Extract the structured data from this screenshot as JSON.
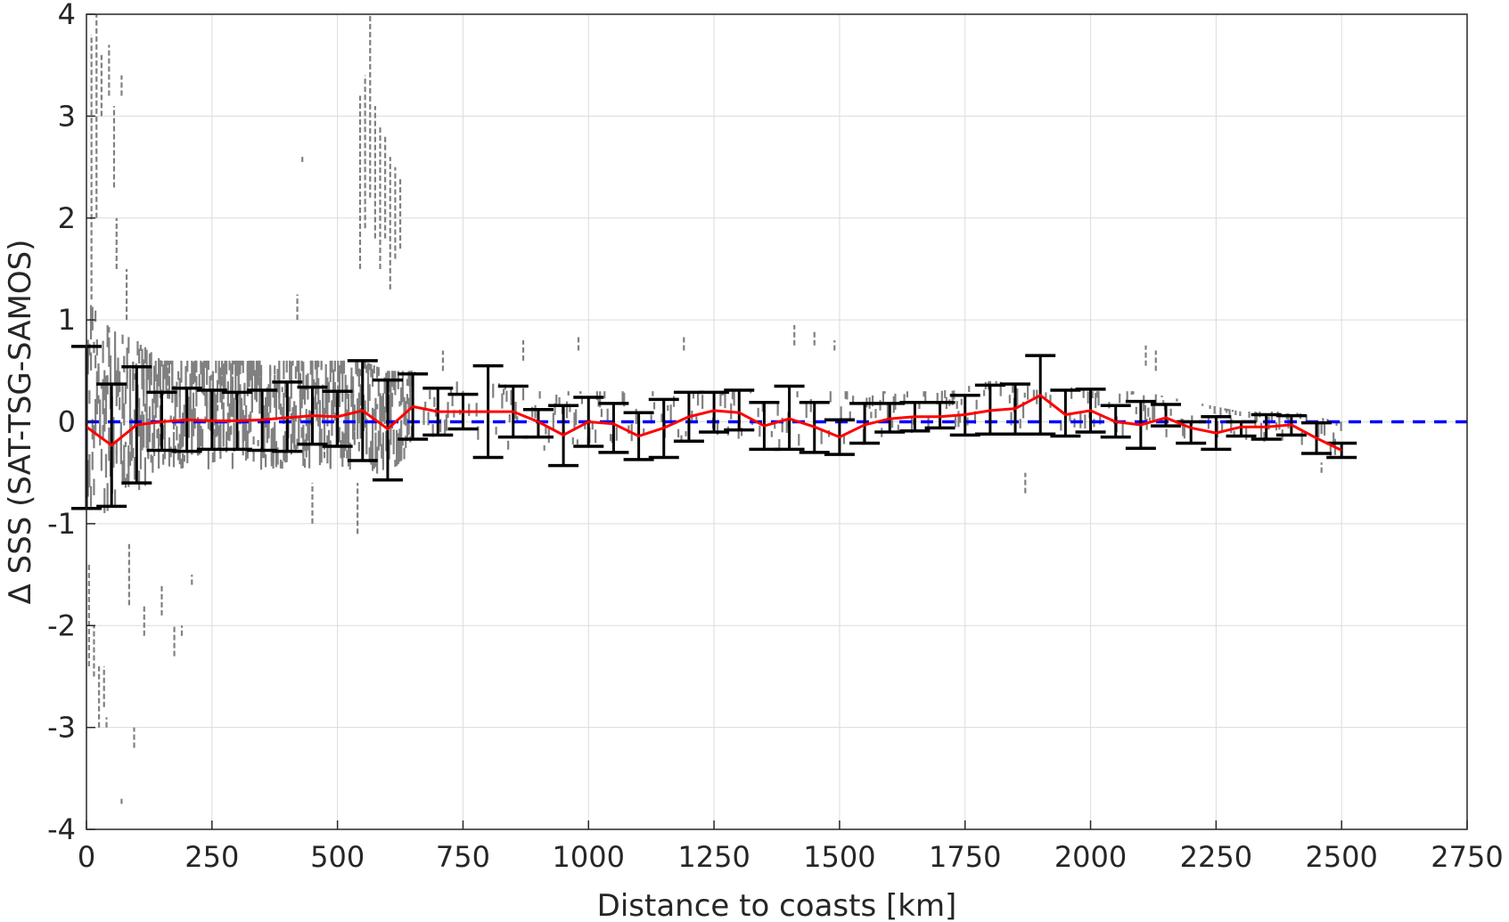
{
  "chart_data": {
    "type": "scatter",
    "title": "",
    "xlabel": "Distance to coasts [km]",
    "ylabel": "Δ SSS (SAT-TSG-SAMOS)",
    "xlim": [
      0,
      2750
    ],
    "ylim": [
      -4,
      4
    ],
    "xticks": [
      0,
      250,
      500,
      750,
      1000,
      1250,
      1500,
      1750,
      2000,
      2250,
      2500,
      2750
    ],
    "yticks": [
      -4,
      -3,
      -2,
      -1,
      0,
      1,
      2,
      3,
      4
    ],
    "xtick_labels": [
      "0",
      "250",
      "500",
      "750",
      "1000",
      "1250",
      "1500",
      "1750",
      "2000",
      "2250",
      "2500",
      "2750"
    ],
    "ytick_labels": [
      "-4",
      "-3",
      "-2",
      "-1",
      "0",
      "1",
      "2",
      "3",
      "4"
    ],
    "grid": true,
    "colors": {
      "scatter": "#808080",
      "mean": "#ff0000",
      "errorbar": "#000000",
      "zero": "#0000ff"
    },
    "scatter_density": [
      {
        "x": 0,
        "lo": -1.2,
        "hi": 1.2
      },
      {
        "x": 50,
        "lo": -0.9,
        "hi": 0.9
      },
      {
        "x": 100,
        "lo": -0.8,
        "hi": 0.8
      },
      {
        "x": 150,
        "lo": -0.5,
        "hi": 0.6
      },
      {
        "x": 200,
        "lo": -0.5,
        "hi": 0.6
      },
      {
        "x": 250,
        "lo": -0.5,
        "hi": 0.6
      },
      {
        "x": 300,
        "lo": -0.5,
        "hi": 0.6
      },
      {
        "x": 350,
        "lo": -0.5,
        "hi": 0.6
      },
      {
        "x": 400,
        "lo": -0.5,
        "hi": 0.6
      },
      {
        "x": 450,
        "lo": -0.5,
        "hi": 0.6
      },
      {
        "x": 500,
        "lo": -0.5,
        "hi": 0.6
      },
      {
        "x": 550,
        "lo": -0.5,
        "hi": 0.6
      },
      {
        "x": 600,
        "lo": -0.6,
        "hi": 0.5
      },
      {
        "x": 650,
        "lo": -0.3,
        "hi": 0.5
      },
      {
        "x": 700,
        "lo": -0.2,
        "hi": 0.4
      },
      {
        "x": 800,
        "lo": -0.3,
        "hi": 0.4
      },
      {
        "x": 900,
        "lo": -0.3,
        "hi": 0.3
      },
      {
        "x": 1000,
        "lo": -0.3,
        "hi": 0.3
      },
      {
        "x": 1100,
        "lo": -0.3,
        "hi": 0.3
      },
      {
        "x": 1200,
        "lo": -0.2,
        "hi": 0.3
      },
      {
        "x": 1300,
        "lo": -0.2,
        "hi": 0.3
      },
      {
        "x": 1400,
        "lo": -0.3,
        "hi": 0.3
      },
      {
        "x": 1500,
        "lo": -0.3,
        "hi": 0.3
      },
      {
        "x": 1600,
        "lo": -0.2,
        "hi": 0.3
      },
      {
        "x": 1700,
        "lo": -0.1,
        "hi": 0.3
      },
      {
        "x": 1800,
        "lo": -0.1,
        "hi": 0.4
      },
      {
        "x": 1900,
        "lo": -0.1,
        "hi": 0.4
      },
      {
        "x": 2000,
        "lo": -0.1,
        "hi": 0.3
      },
      {
        "x": 2100,
        "lo": -0.2,
        "hi": 0.3
      },
      {
        "x": 2200,
        "lo": -0.2,
        "hi": 0.2
      },
      {
        "x": 2300,
        "lo": -0.2,
        "hi": 0.1
      },
      {
        "x": 2400,
        "lo": -0.3,
        "hi": 0.1
      },
      {
        "x": 2500,
        "lo": -0.4,
        "hi": 0.0
      }
    ],
    "scatter_outliers": [
      {
        "x": 10,
        "lo": 1.2,
        "hi": 3.8
      },
      {
        "x": 20,
        "lo": 2.0,
        "hi": 4.0
      },
      {
        "x": 30,
        "lo": 3.0,
        "hi": 3.6
      },
      {
        "x": 45,
        "lo": 3.2,
        "hi": 3.7
      },
      {
        "x": 55,
        "lo": 2.3,
        "hi": 3.1
      },
      {
        "x": 70,
        "lo": 3.2,
        "hi": 3.4
      },
      {
        "x": 60,
        "lo": 1.5,
        "hi": 2.0
      },
      {
        "x": 80,
        "lo": 1.0,
        "hi": 1.5
      },
      {
        "x": 5,
        "lo": -2.4,
        "hi": -1.4
      },
      {
        "x": 15,
        "lo": -2.5,
        "hi": -2.0
      },
      {
        "x": 25,
        "lo": -3.0,
        "hi": -2.4
      },
      {
        "x": 35,
        "lo": -2.8,
        "hi": -2.4
      },
      {
        "x": 40,
        "lo": -3.0,
        "hi": -2.9
      },
      {
        "x": 85,
        "lo": -1.8,
        "hi": -1.2
      },
      {
        "x": 95,
        "lo": -3.2,
        "hi": -3.0
      },
      {
        "x": 70,
        "lo": -3.75,
        "hi": -3.7
      },
      {
        "x": 115,
        "lo": -2.1,
        "hi": -1.8
      },
      {
        "x": 150,
        "lo": -1.9,
        "hi": -1.6
      },
      {
        "x": 175,
        "lo": -2.3,
        "hi": -2.0
      },
      {
        "x": 190,
        "lo": -2.1,
        "hi": -2.0
      },
      {
        "x": 210,
        "lo": -1.6,
        "hi": -1.5
      },
      {
        "x": 420,
        "lo": 1.0,
        "hi": 1.25
      },
      {
        "x": 430,
        "lo": 2.55,
        "hi": 2.6
      },
      {
        "x": 545,
        "lo": 1.5,
        "hi": 3.2
      },
      {
        "x": 555,
        "lo": 1.9,
        "hi": 3.4
      },
      {
        "x": 565,
        "lo": 2.2,
        "hi": 4.0
      },
      {
        "x": 575,
        "lo": 1.8,
        "hi": 3.1
      },
      {
        "x": 585,
        "lo": 1.5,
        "hi": 2.9
      },
      {
        "x": 595,
        "lo": 1.8,
        "hi": 2.8
      },
      {
        "x": 605,
        "lo": 1.3,
        "hi": 2.6
      },
      {
        "x": 615,
        "lo": 1.6,
        "hi": 2.5
      },
      {
        "x": 625,
        "lo": 1.7,
        "hi": 2.4
      },
      {
        "x": 540,
        "lo": -1.1,
        "hi": -0.6
      },
      {
        "x": 450,
        "lo": -1.0,
        "hi": -0.6
      },
      {
        "x": 710,
        "lo": 0.5,
        "hi": 0.7
      },
      {
        "x": 870,
        "lo": 0.6,
        "hi": 0.8
      },
      {
        "x": 980,
        "lo": 0.7,
        "hi": 0.85
      },
      {
        "x": 1190,
        "lo": 0.7,
        "hi": 0.85
      },
      {
        "x": 1410,
        "lo": 0.75,
        "hi": 0.95
      },
      {
        "x": 1450,
        "lo": 0.75,
        "hi": 0.9
      },
      {
        "x": 1490,
        "lo": 0.7,
        "hi": 0.8
      },
      {
        "x": 1870,
        "lo": -0.7,
        "hi": -0.5
      },
      {
        "x": 2110,
        "lo": 0.55,
        "hi": 0.75
      },
      {
        "x": 2130,
        "lo": 0.5,
        "hi": 0.7
      },
      {
        "x": 2460,
        "lo": -0.5,
        "hi": -0.4
      }
    ],
    "series": [
      {
        "x": [
          0,
          50,
          100,
          150,
          200,
          250,
          300,
          350,
          400,
          450,
          500,
          550,
          600,
          650,
          700,
          750,
          800,
          850,
          900,
          950,
          1000,
          1050,
          1100,
          1150,
          1200,
          1250,
          1300,
          1350,
          1400,
          1450,
          1500,
          1550,
          1600,
          1650,
          1700,
          1750,
          1800,
          1850,
          1900,
          1950,
          2000,
          2050,
          2100,
          2150,
          2200,
          2250,
          2300,
          2350,
          2400,
          2450,
          2500
        ],
        "mean": [
          -0.05,
          -0.23,
          -0.03,
          0.0,
          0.02,
          0.01,
          0.01,
          0.02,
          0.04,
          0.06,
          0.05,
          0.11,
          -0.07,
          0.15,
          0.1,
          0.1,
          0.1,
          0.1,
          0.0,
          -0.13,
          0.0,
          -0.02,
          -0.14,
          -0.06,
          0.05,
          0.11,
          0.09,
          -0.04,
          0.03,
          -0.05,
          -0.15,
          -0.03,
          0.03,
          0.05,
          0.05,
          0.07,
          0.11,
          0.13,
          0.26,
          0.07,
          0.11,
          0.0,
          -0.03,
          0.04,
          -0.06,
          -0.11,
          -0.05,
          -0.05,
          -0.03,
          -0.16,
          -0.28
        ],
        "lower": [
          -0.85,
          -0.83,
          -0.6,
          -0.28,
          -0.29,
          -0.27,
          -0.27,
          -0.28,
          -0.29,
          -0.22,
          -0.24,
          -0.38,
          -0.57,
          -0.17,
          -0.13,
          -0.07,
          -0.35,
          -0.15,
          -0.15,
          -0.43,
          -0.24,
          -0.3,
          -0.37,
          -0.35,
          -0.19,
          -0.1,
          -0.08,
          -0.27,
          -0.27,
          -0.3,
          -0.32,
          -0.21,
          -0.1,
          -0.09,
          -0.06,
          -0.13,
          -0.12,
          -0.12,
          -0.12,
          -0.14,
          -0.1,
          -0.15,
          -0.26,
          -0.04,
          -0.21,
          -0.27,
          -0.14,
          -0.17,
          -0.13,
          -0.31,
          -0.35
        ],
        "upper": [
          0.74,
          0.37,
          0.54,
          0.29,
          0.33,
          0.31,
          0.29,
          0.31,
          0.39,
          0.34,
          0.3,
          0.6,
          0.41,
          0.47,
          0.33,
          0.27,
          0.55,
          0.35,
          0.12,
          0.16,
          0.24,
          0.18,
          0.09,
          0.22,
          0.29,
          0.29,
          0.31,
          0.19,
          0.35,
          0.19,
          0.02,
          0.18,
          0.18,
          0.19,
          0.19,
          0.26,
          0.36,
          0.37,
          0.65,
          0.31,
          0.32,
          0.16,
          0.2,
          0.17,
          0.0,
          0.05,
          0.0,
          0.07,
          0.06,
          -0.01,
          -0.21
        ]
      }
    ],
    "reference_line": {
      "y": 0,
      "style": "dashed"
    }
  }
}
